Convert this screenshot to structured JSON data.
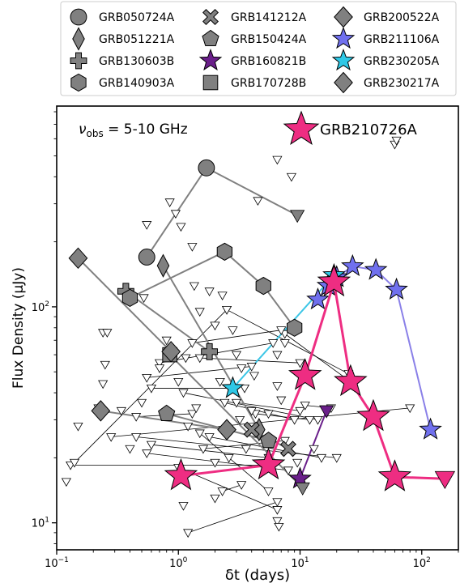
{
  "chart_data": {
    "type": "scatter",
    "title": "",
    "xlabel": "δt (days)",
    "ylabel": "Flux Density (μJy)",
    "x_scale": "log",
    "y_scale": "log",
    "xlim": [
      0.1,
      200
    ],
    "ylim": [
      7.5,
      850
    ],
    "x_ticks": [
      {
        "value": 0.1,
        "base": "10",
        "exp": "−1"
      },
      {
        "value": 1,
        "base": "10",
        "exp": "0"
      },
      {
        "value": 10,
        "base": "10",
        "exp": "1"
      },
      {
        "value": 100,
        "base": "10",
        "exp": "2"
      }
    ],
    "y_ticks": [
      {
        "value": 10,
        "base": "10",
        "exp": "1"
      },
      {
        "value": 100,
        "base": "10",
        "exp": "2"
      }
    ],
    "annotation": {
      "nu": "ν",
      "sub": "obs",
      "text": " = 5-10 GHz"
    },
    "highlight_label": "GRB210726A",
    "legend_position": "top, outside plot (3 columns)",
    "series": [
      {
        "name": "GRB050724A",
        "marker": "circle",
        "color": "#808080",
        "line": "#808080",
        "points": [
          {
            "x": 0.55,
            "y": 170
          },
          {
            "x": 1.7,
            "y": 440
          },
          {
            "x": 9.5,
            "y": 265,
            "limit": true
          }
        ]
      },
      {
        "name": "GRB051221A",
        "marker": "diamond_thin",
        "color": "#808080",
        "line": "#808080",
        "points": [
          {
            "x": 0.75,
            "y": 155
          },
          {
            "x": 4.6,
            "y": 27
          }
        ]
      },
      {
        "name": "GRB130603B",
        "marker": "plus",
        "color": "#808080",
        "line": "#808080",
        "points": [
          {
            "x": 0.37,
            "y": 118
          },
          {
            "x": 1.8,
            "y": 62
          }
        ]
      },
      {
        "name": "GRB140903A",
        "marker": "hexagon",
        "color": "#808080",
        "line": "#808080",
        "points": [
          {
            "x": 0.4,
            "y": 110
          },
          {
            "x": 2.4,
            "y": 180
          },
          {
            "x": 5.0,
            "y": 125
          },
          {
            "x": 9.0,
            "y": 80
          }
        ]
      },
      {
        "name": "GRB141212A",
        "marker": "x",
        "color": "#808080",
        "line": "#808080",
        "points": [
          {
            "x": 4.0,
            "y": 27
          },
          {
            "x": 8.0,
            "y": 22
          }
        ]
      },
      {
        "name": "GRB150424A",
        "marker": "pentagon",
        "color": "#808080",
        "line": "#808080",
        "points": [
          {
            "x": 0.8,
            "y": 32
          },
          {
            "x": 5.5,
            "y": 24
          }
        ]
      },
      {
        "name": "GRB160821B",
        "marker": "star",
        "color": "#6a1f8a",
        "line": "#6a1f8a",
        "points": [
          {
            "x": 10,
            "y": 16
          },
          {
            "x": 16.5,
            "y": 33,
            "limit": true
          }
        ]
      },
      {
        "name": "GRB170728B",
        "marker": "square",
        "color": "#808080",
        "line": "#808080",
        "points": [
          {
            "x": 0.85,
            "y": 60
          },
          {
            "x": 10.5,
            "y": 14.5,
            "limit": true
          }
        ]
      },
      {
        "name": "GRB200522A",
        "marker": "diamond",
        "color": "#808080",
        "line": "#808080",
        "points": [
          {
            "x": 0.23,
            "y": 33
          },
          {
            "x": 2.5,
            "y": 27
          }
        ]
      },
      {
        "name": "GRB211106A",
        "marker": "star",
        "color": "#7070ee",
        "line": "#8a80e8",
        "points": [
          {
            "x": 14,
            "y": 108
          },
          {
            "x": 17,
            "y": 125
          },
          {
            "x": 20,
            "y": 137
          },
          {
            "x": 27,
            "y": 154
          },
          {
            "x": 42,
            "y": 148
          },
          {
            "x": 62,
            "y": 120
          },
          {
            "x": 118,
            "y": 27
          }
        ]
      },
      {
        "name": "GRB230205A",
        "marker": "star",
        "color": "#2ec8e6",
        "line": "#3cc6e6",
        "points": [
          {
            "x": 2.8,
            "y": 42
          },
          {
            "x": 19,
            "y": 140
          }
        ]
      },
      {
        "name": "GRB230217A",
        "marker": "diamond",
        "color": "#808080",
        "line": "#808080",
        "points": [
          {
            "x": 0.15,
            "y": 168
          },
          {
            "x": 0.87,
            "y": 62
          }
        ]
      }
    ],
    "highlight": {
      "name": "GRB210726A",
      "marker": "star",
      "color": "#ee2d82",
      "points": [
        {
          "x": 1.05,
          "y": 16.5
        },
        {
          "x": 5.5,
          "y": 18.5
        },
        {
          "x": 11,
          "y": 48
        },
        {
          "x": 19,
          "y": 130
        },
        {
          "x": 26,
          "y": 45
        },
        {
          "x": 40,
          "y": 31
        },
        {
          "x": 60,
          "y": 16.3
        },
        {
          "x": 155,
          "y": 16,
          "limit": true
        }
      ]
    },
    "other_limits": [
      {
        "x1": 0.13,
        "y1": 18.5,
        "x2": 5.5,
        "y2": 18.5
      },
      {
        "x1": 0.14,
        "y1": 19,
        "x2": 2.5,
        "y2": 97
      },
      {
        "x1": 0.28,
        "y1": 25,
        "x2": 80,
        "y2": 34
      },
      {
        "x1": 0.45,
        "y1": 25,
        "x2": 20,
        "y2": 20
      },
      {
        "x1": 1.0,
        "y1": 18,
        "x2": 6.5,
        "y2": 11.5
      },
      {
        "x1": 1.5,
        "y1": 26,
        "x2": 5.5,
        "y2": 14
      },
      {
        "x1": 2.5,
        "y1": 97,
        "x2": 25,
        "y2": 49
      },
      {
        "x1": 7.5,
        "y1": 75,
        "x2": 26,
        "y2": 45
      },
      {
        "x1": 0.7,
        "y1": 55,
        "x2": 6.0,
        "y2": 68
      },
      {
        "x1": 1.3,
        "y1": 68,
        "x2": 7.0,
        "y2": 78
      },
      {
        "x1": 1.5,
        "y1": 58,
        "x2": 10,
        "y2": 55
      },
      {
        "x1": 0.55,
        "y1": 47,
        "x2": 4.0,
        "y2": 53
      },
      {
        "x1": 0.6,
        "y1": 42,
        "x2": 2.8,
        "y2": 42
      },
      {
        "x1": 1.1,
        "y1": 40,
        "x2": 14,
        "y2": 30
      },
      {
        "x1": 3.0,
        "y1": 36,
        "x2": 10,
        "y2": 33
      },
      {
        "x1": 4.3,
        "y1": 32,
        "x2": 12,
        "y2": 30
      },
      {
        "x1": 0.6,
        "y1": 23,
        "x2": 5.5,
        "y2": 20
      },
      {
        "x1": 0.55,
        "y1": 21,
        "x2": 8.0,
        "y2": 17.5
      },
      {
        "x1": 1.6,
        "y1": 22,
        "x2": 7.5,
        "y2": 24
      },
      {
        "x1": 0.45,
        "y1": 31,
        "x2": 1.3,
        "y2": 32
      },
      {
        "x1": 2.4,
        "y1": 36,
        "x2": 9,
        "y2": 30
      },
      {
        "x1": 1.8,
        "y1": 25,
        "x2": 15,
        "y2": 20
      },
      {
        "x1": 1.2,
        "y1": 9,
        "x2": 6.5,
        "y2": 12.5
      },
      {
        "x1": 11,
        "y1": 35,
        "x2": 18,
        "y2": 34
      },
      {
        "x1": 2.3,
        "y1": 14,
        "x2": 3.3,
        "y2": 15
      }
    ],
    "scattered_limits": [
      {
        "x": 0.12,
        "y": 15.5
      },
      {
        "x": 0.24,
        "y": 76
      },
      {
        "x": 0.26,
        "y": 76
      },
      {
        "x": 0.25,
        "y": 54
      },
      {
        "x": 0.24,
        "y": 44
      },
      {
        "x": 0.34,
        "y": 33
      },
      {
        "x": 0.5,
        "y": 36
      },
      {
        "x": 0.52,
        "y": 110
      },
      {
        "x": 0.15,
        "y": 28
      },
      {
        "x": 0.4,
        "y": 22
      },
      {
        "x": 0.22,
        "y": 34
      },
      {
        "x": 0.7,
        "y": 52
      },
      {
        "x": 0.8,
        "y": 70
      },
      {
        "x": 0.85,
        "y": 305
      },
      {
        "x": 0.95,
        "y": 270
      },
      {
        "x": 0.55,
        "y": 240
      },
      {
        "x": 1.05,
        "y": 235
      },
      {
        "x": 1.3,
        "y": 190
      },
      {
        "x": 1.35,
        "y": 125
      },
      {
        "x": 1.8,
        "y": 118
      },
      {
        "x": 1.5,
        "y": 95
      },
      {
        "x": 2.0,
        "y": 82
      },
      {
        "x": 2.3,
        "y": 113
      },
      {
        "x": 2.8,
        "y": 78
      },
      {
        "x": 3.0,
        "y": 60
      },
      {
        "x": 3.3,
        "y": 52
      },
      {
        "x": 3.5,
        "y": 42
      },
      {
        "x": 4.0,
        "y": 33
      },
      {
        "x": 5.5,
        "y": 32
      },
      {
        "x": 6.5,
        "y": 480
      },
      {
        "x": 8.5,
        "y": 400
      },
      {
        "x": 4.5,
        "y": 310
      },
      {
        "x": 6.5,
        "y": 60
      },
      {
        "x": 7.5,
        "y": 68
      },
      {
        "x": 6.5,
        "y": 43
      },
      {
        "x": 2.2,
        "y": 45
      },
      {
        "x": 1.0,
        "y": 45
      },
      {
        "x": 1.15,
        "y": 58
      },
      {
        "x": 1.2,
        "y": 28
      },
      {
        "x": 1.4,
        "y": 34
      },
      {
        "x": 2.0,
        "y": 19
      },
      {
        "x": 2.6,
        "y": 20
      },
      {
        "x": 3.6,
        "y": 22
      },
      {
        "x": 6.5,
        "y": 10.2
      },
      {
        "x": 6.7,
        "y": 9.6
      },
      {
        "x": 2.0,
        "y": 13
      },
      {
        "x": 1.1,
        "y": 12
      },
      {
        "x": 7.0,
        "y": 37
      },
      {
        "x": 9.5,
        "y": 19
      },
      {
        "x": 13.0,
        "y": 22
      },
      {
        "x": 60,
        "y": 565
      },
      {
        "x": 62,
        "y": 590
      },
      {
        "x": 2.5,
        "y": 26
      },
      {
        "x": 3.2,
        "y": 30
      },
      {
        "x": 4.2,
        "y": 48
      }
    ]
  }
}
